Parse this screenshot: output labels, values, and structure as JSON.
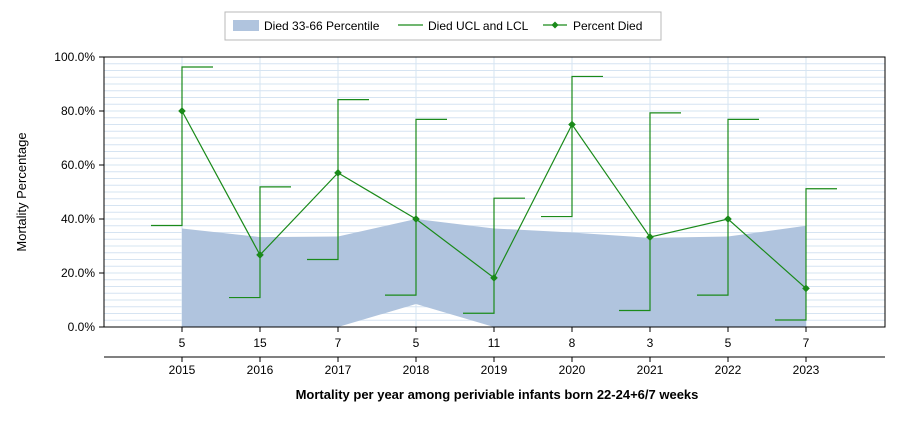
{
  "chart_data": {
    "type": "line",
    "xlabel": "Mortality per year among periviable infants born 22-24+6/7 weeks",
    "ylabel": "Mortality Percentage",
    "ylim": [
      0,
      100
    ],
    "yticks": [
      "0.0%",
      "20.0%",
      "40.0%",
      "60.0%",
      "80.0%",
      "100.0%"
    ],
    "categories": [
      "2015",
      "2016",
      "2017",
      "2018",
      "2019",
      "2020",
      "2021",
      "2022",
      "2023"
    ],
    "counts": [
      "5",
      "15",
      "7",
      "5",
      "11",
      "8",
      "3",
      "5",
      "7"
    ],
    "grid": true,
    "legend_position": "top-center",
    "legend": [
      "Died 33-66 Percentile",
      "Died UCL and LCL",
      "Percent Died"
    ],
    "series": [
      {
        "name": "Percent Died",
        "values": [
          80.0,
          26.7,
          57.1,
          40.0,
          18.2,
          75.0,
          33.3,
          40.0,
          14.3
        ],
        "color": "#1a8a1a"
      },
      {
        "name": "Died UCL and LCL",
        "ucl": [
          96.3,
          51.9,
          84.2,
          76.9,
          47.7,
          92.8,
          79.3,
          76.9,
          51.2
        ],
        "lcl": [
          37.6,
          10.9,
          25.0,
          11.8,
          5.1,
          40.9,
          6.1,
          11.8,
          2.6
        ],
        "color": "#1a8a1a"
      },
      {
        "name": "Died 33-66 Percentile",
        "upper": [
          36.5,
          33.3,
          33.5,
          40.0,
          36.5,
          35.0,
          33.0,
          33.5,
          37.5
        ],
        "lower": [
          0.0,
          0.0,
          0.0,
          8.5,
          0.0,
          0.0,
          0.0,
          0.0,
          0.0
        ],
        "color": "#b0c4de"
      }
    ]
  }
}
